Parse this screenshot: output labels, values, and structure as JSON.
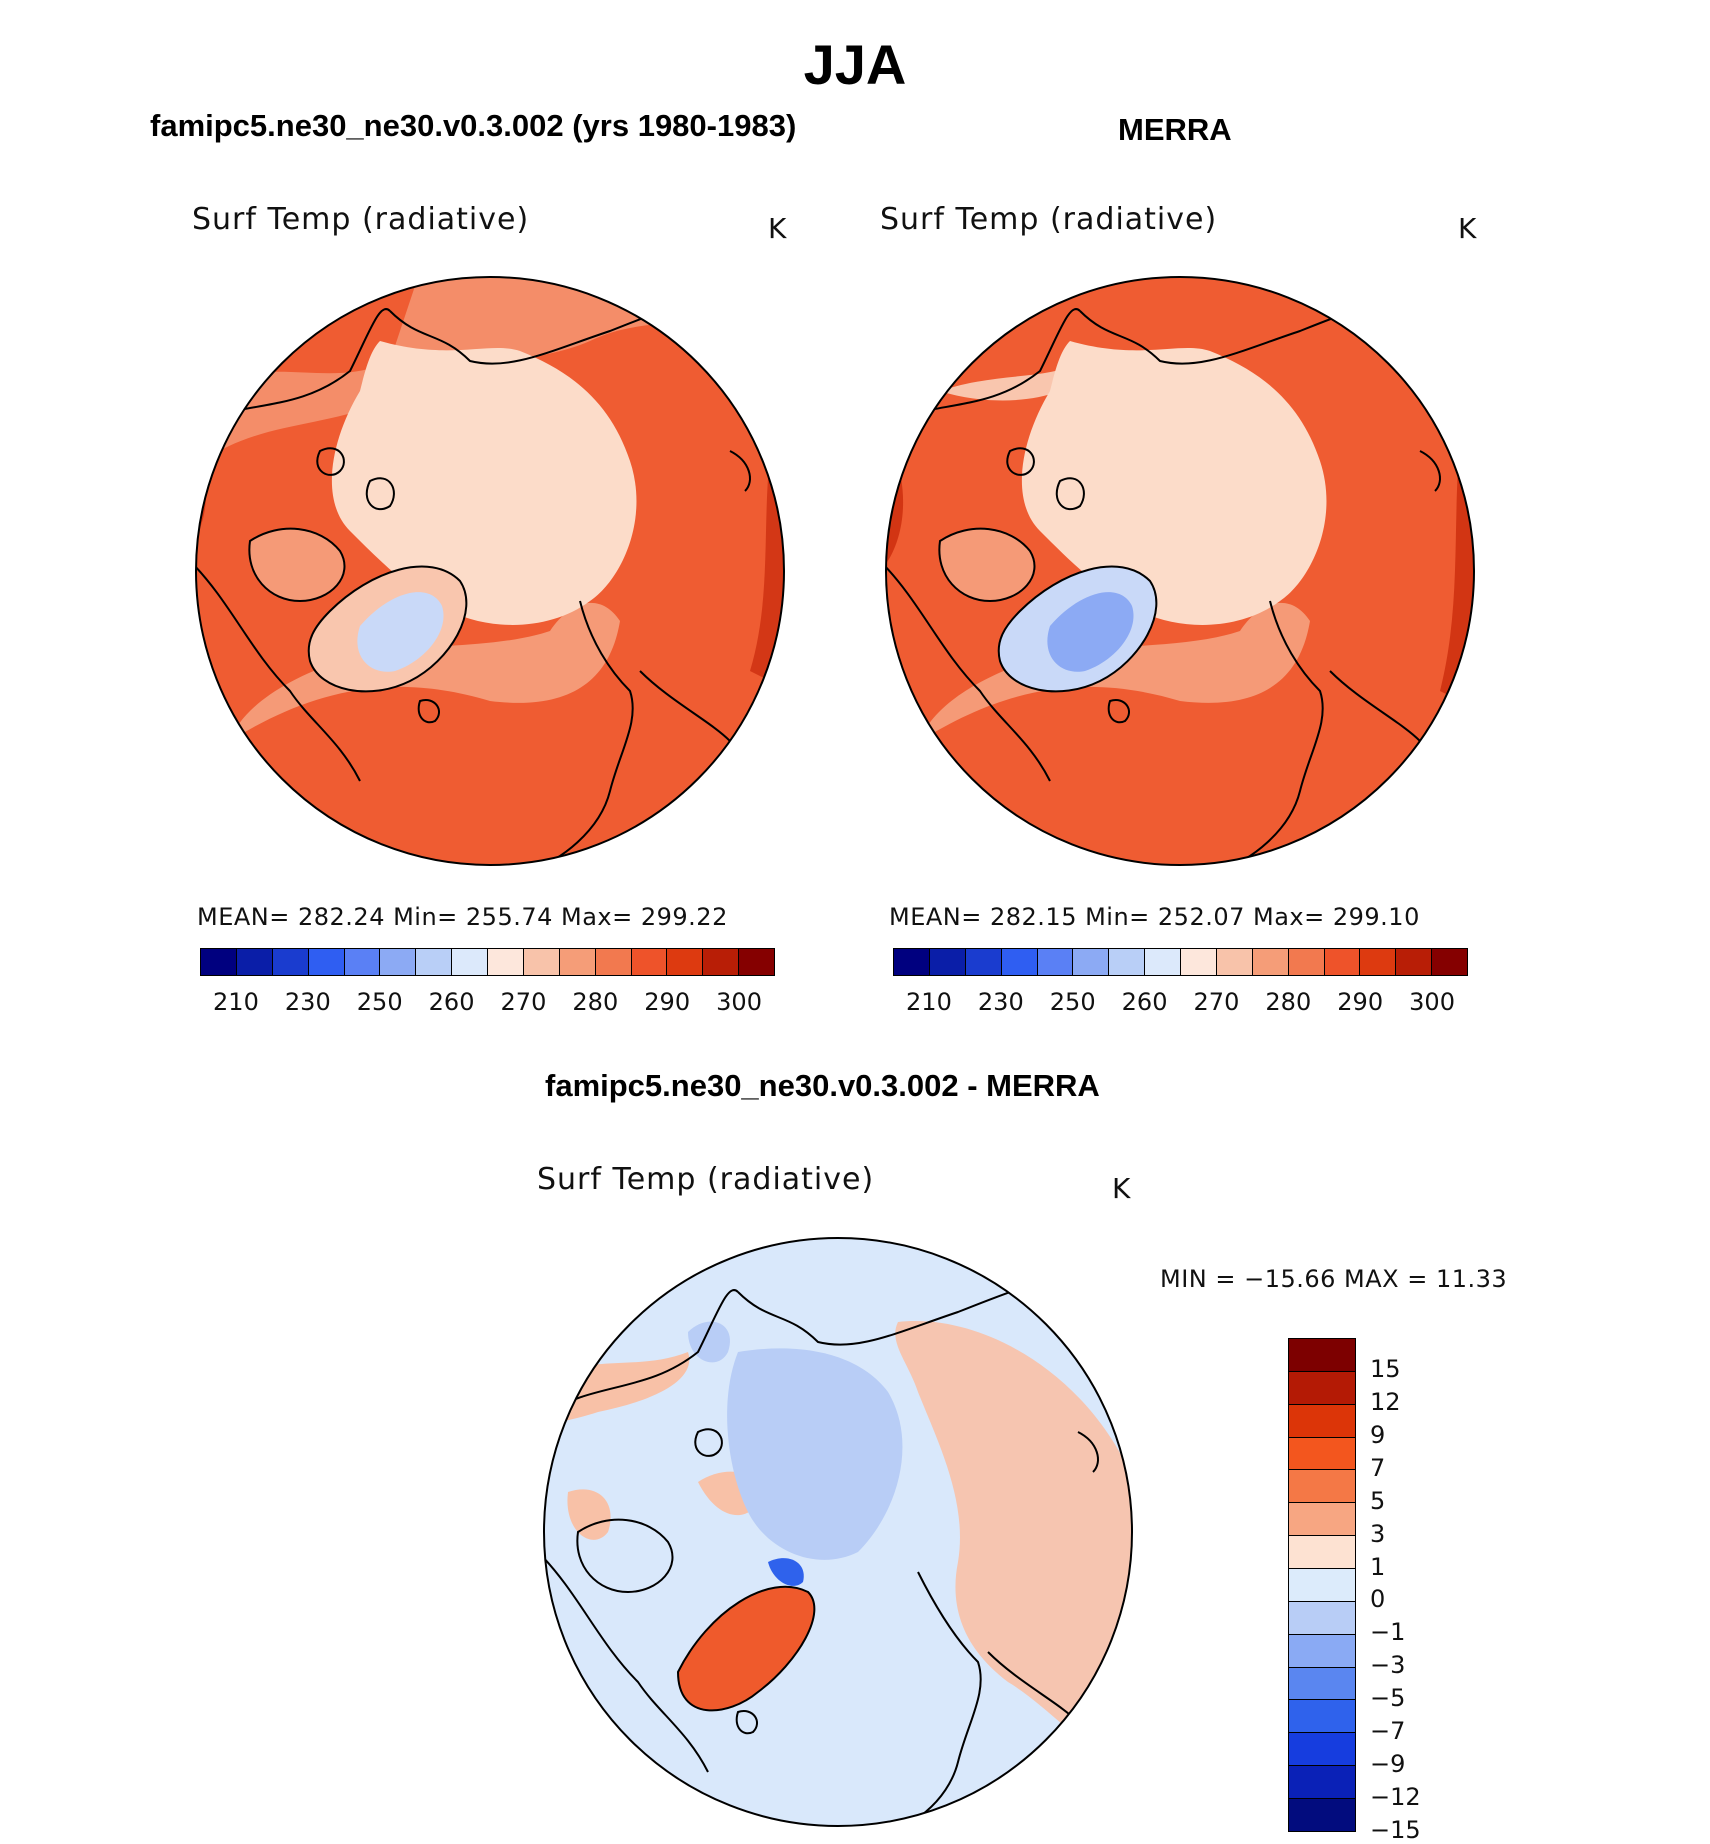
{
  "figure": {
    "season": "JJA",
    "panels": [
      {
        "id": "model",
        "title": "famipc5.ne30_ne30.v0.3.002 (yrs 1980-1983)",
        "variable": "Surf Temp (radiative)",
        "units": "K",
        "stats": "MEAN=  282.24    Min=  255.74    Max=  299.22"
      },
      {
        "id": "obs",
        "title": "MERRA",
        "variable": "Surf Temp (radiative)",
        "units": "K",
        "stats": "MEAN=  282.15    Min=  252.07    Max=  299.10"
      },
      {
        "id": "diff",
        "title": "famipc5.ne30_ne30.v0.3.002 - MERRA",
        "variable": "Surf Temp (radiative)",
        "units": "K",
        "stats": "MIN  =  −15.66  MAX  =    11.33"
      }
    ],
    "abs_colorbar": {
      "colors": [
        "#00007f",
        "#0a1ea8",
        "#1a3ccf",
        "#2f5ef2",
        "#5a80f5",
        "#8caaf4",
        "#b9cff7",
        "#dce9fb",
        "#fde7dc",
        "#f8c3aa",
        "#f59d78",
        "#f2794f",
        "#ee532a",
        "#dd3a10",
        "#b81e06",
        "#850000"
      ],
      "ticks": [
        "210",
        "230",
        "250",
        "260",
        "270",
        "280",
        "290",
        "300"
      ]
    },
    "diff_colorbar": {
      "colors": [
        "#7d0000",
        "#b41a05",
        "#dc3508",
        "#f3561e",
        "#f47846",
        "#f7a682",
        "#fde2d2",
        "#dcebfb",
        "#b8cdf6",
        "#8aaaf4",
        "#5a86f0",
        "#2f62ec",
        "#163ddf",
        "#0a21b7",
        "#020c7e"
      ],
      "labels": [
        "15",
        "12",
        "9",
        "7",
        "5",
        "3",
        "1",
        "0",
        "−1",
        "−3",
        "−5",
        "−7",
        "−9",
        "−12",
        "−15"
      ]
    },
    "colors": {
      "coast": "#000000",
      "abs_warm": "#ef5c32",
      "abs_mid": "#f59a77",
      "abs_cool": "#f9c6ae",
      "abs_polar": "#fcdcc9",
      "abs_ice": "#c9d9f8",
      "abs_hot": "#c8280a",
      "diff_base": "#d9e8fb",
      "diff_neg": "#b8cdf6",
      "diff_pos": "#f8c1a7",
      "diff_hot": "#ef5a2c"
    }
  }
}
